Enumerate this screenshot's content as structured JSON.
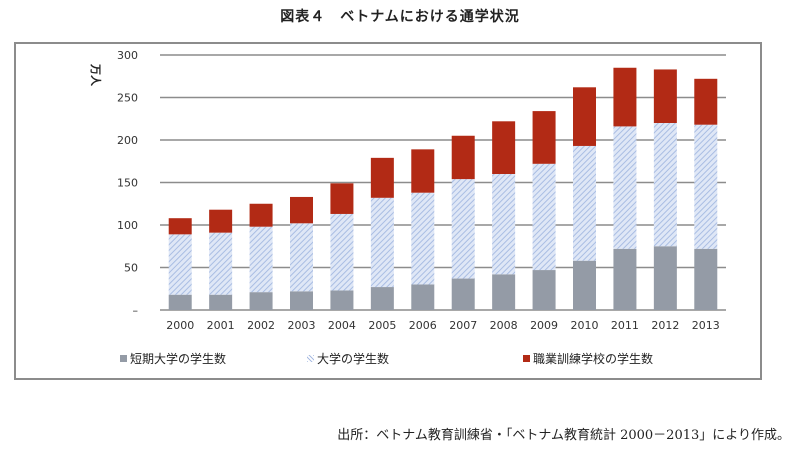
{
  "title": "図表４　ベトナムにおける通学状況",
  "source": "出所：ベトナム教育訓練省・「ベトナム教育統計 2000－2013」により作成。",
  "colors": {
    "junior_college": "#949ba6",
    "university": "#c9d6ee",
    "university_stripe": "#a9bde3",
    "vocational": "#b22a15",
    "grid": "#8c8c8c"
  },
  "chart_data": {
    "type": "bar",
    "stacked": true,
    "title": "図表４　ベトナムにおける通学状況",
    "ylabel": "万人",
    "xlabel": "",
    "ylim": [
      0,
      300
    ],
    "yticks": [
      0,
      50,
      100,
      150,
      200,
      250,
      300
    ],
    "ytick_labels": [
      "–",
      "50",
      "100",
      "150",
      "200",
      "250",
      "300"
    ],
    "grid": true,
    "legend_position": "bottom",
    "categories": [
      "2000",
      "2001",
      "2002",
      "2003",
      "2004",
      "2005",
      "2006",
      "2007",
      "2008",
      "2009",
      "2010",
      "2011",
      "2012",
      "2013"
    ],
    "series": [
      {
        "name": "短期大学の学生数",
        "values": [
          18,
          18,
          21,
          22,
          23,
          27,
          30,
          37,
          42,
          47,
          58,
          72,
          75,
          72
        ]
      },
      {
        "name": "大学の学生数",
        "values": [
          71,
          73,
          77,
          80,
          90,
          105,
          108,
          117,
          118,
          125,
          135,
          144,
          145,
          146
        ]
      },
      {
        "name": "職業訓練学校の学生数",
        "values": [
          19,
          27,
          27,
          31,
          36,
          47,
          51,
          51,
          62,
          62,
          69,
          69,
          63,
          54
        ]
      }
    ]
  }
}
